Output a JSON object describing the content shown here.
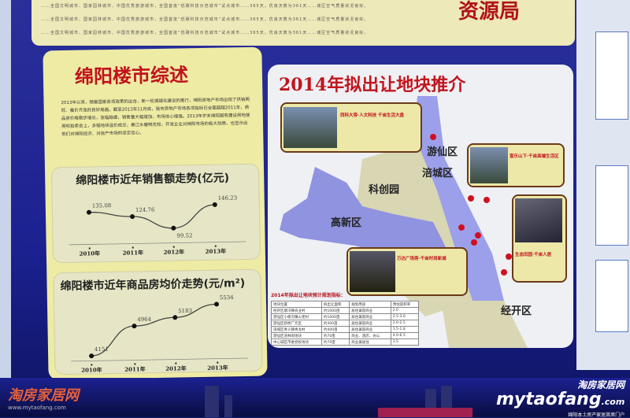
{
  "top_banner": {
    "title_fragment": "资源局",
    "text": "……全国文明城市、国家园林城市、中国优秀旅游城市，全国首批“低碳科技示范城市”试点城市……365天，优良天数为361天……城区空气质量状况良好。"
  },
  "overview": {
    "title": "绵阳楼市综述",
    "body": "2013年以来，随着国家各项政策的出台，新一轮城镇化建设的推行，绵阳房地产市场出现了供销两旺、量价齐涨的良好局面。截至2013年11月底，我市房地产市场各项指标已全面超越2011年，商品房价格稳步增长，涨幅趋缓，销售量大幅增加，市场信心增强。2013年岁末绵阳国有建设用地使用权拍卖会上，多幅地块溢价成交，春江水暖鸭先知，开发企业对绵阳市场的极大热情，也显示出他们对绵阳经济、对房产市场的坚定信心。"
  },
  "chart_data": [
    {
      "type": "line",
      "title": "绵阳楼市近年销售额走势(亿元)",
      "categories": [
        "2010年",
        "2011年",
        "2012年",
        "2013年"
      ],
      "values": [
        135.08,
        124.76,
        99.52,
        146.23
      ],
      "data_labels": [
        "135.08",
        "124.76",
        "99.52",
        "146.23"
      ],
      "grid": false
    },
    {
      "type": "line",
      "title": "绵阳楼市近年商品房均价走势(元/m²)",
      "categories": [
        "2010年",
        "2011年",
        "2012年",
        "2013年"
      ],
      "values": [
        4151,
        4964,
        5183,
        5534
      ],
      "data_labels": [
        "4151",
        "4964",
        "5183",
        "5534"
      ],
      "grid": false
    }
  ],
  "map": {
    "title": "2014年拟出让地块推介",
    "districts": [
      "游仙区",
      "涪城区",
      "科创园",
      "高新区",
      "经开区"
    ],
    "callouts": [
      {
        "headline": "西科大旁·人文科技 千亩生活大盘"
      },
      {
        "headline": "富乐山下·千亩高端生活区"
      },
      {
        "headline": "万达广场旁·千亩时尚新城"
      },
      {
        "headline": "生态田园·千亩人居"
      }
    ],
    "table": {
      "title": "2014年拟出让地块预计规划指标：",
      "headers": [
        "地块位置",
        "拟出让面积",
        "规划用途",
        "预估容积率"
      ],
      "rows": [
        [
          "经开区塘汛镇农业村",
          "约1000亩",
          "居住兼容商业",
          "2.0"
        ],
        [
          "游仙区小枧沟镇火炬村",
          "约1000亩",
          "居住兼容商业",
          "2.5-3.0"
        ],
        [
          "游仙区新桥广元区",
          "约300亩",
          "居住兼容商业",
          "2.0-2.5"
        ],
        [
          "涪城区青义镇青龙村",
          "约400亩",
          "居住兼容商业",
          "1.5-1.8"
        ],
        [
          "游仙区涪林坝地块",
          "约70亩",
          "商业、酒店、办公",
          "4.0-6.5"
        ],
        [
          "中心城区市委党校地块",
          "约70亩",
          "商业兼居住",
          "3.5"
        ]
      ]
    }
  },
  "watermarks": {
    "left_cn": "淘房家居网",
    "left_url": "www.mytaofang.com",
    "right_cn": "淘房家居网",
    "right_en": "mytaofang",
    ".com": ".com",
    "right_slogan": "绵阳本土房产家居首席门户"
  },
  "colors": {
    "poster_blue": "#1b2190",
    "panel_yellow": "#eeeba4",
    "title_red": "#c2121d",
    "map_region": "#8f93e0"
  }
}
